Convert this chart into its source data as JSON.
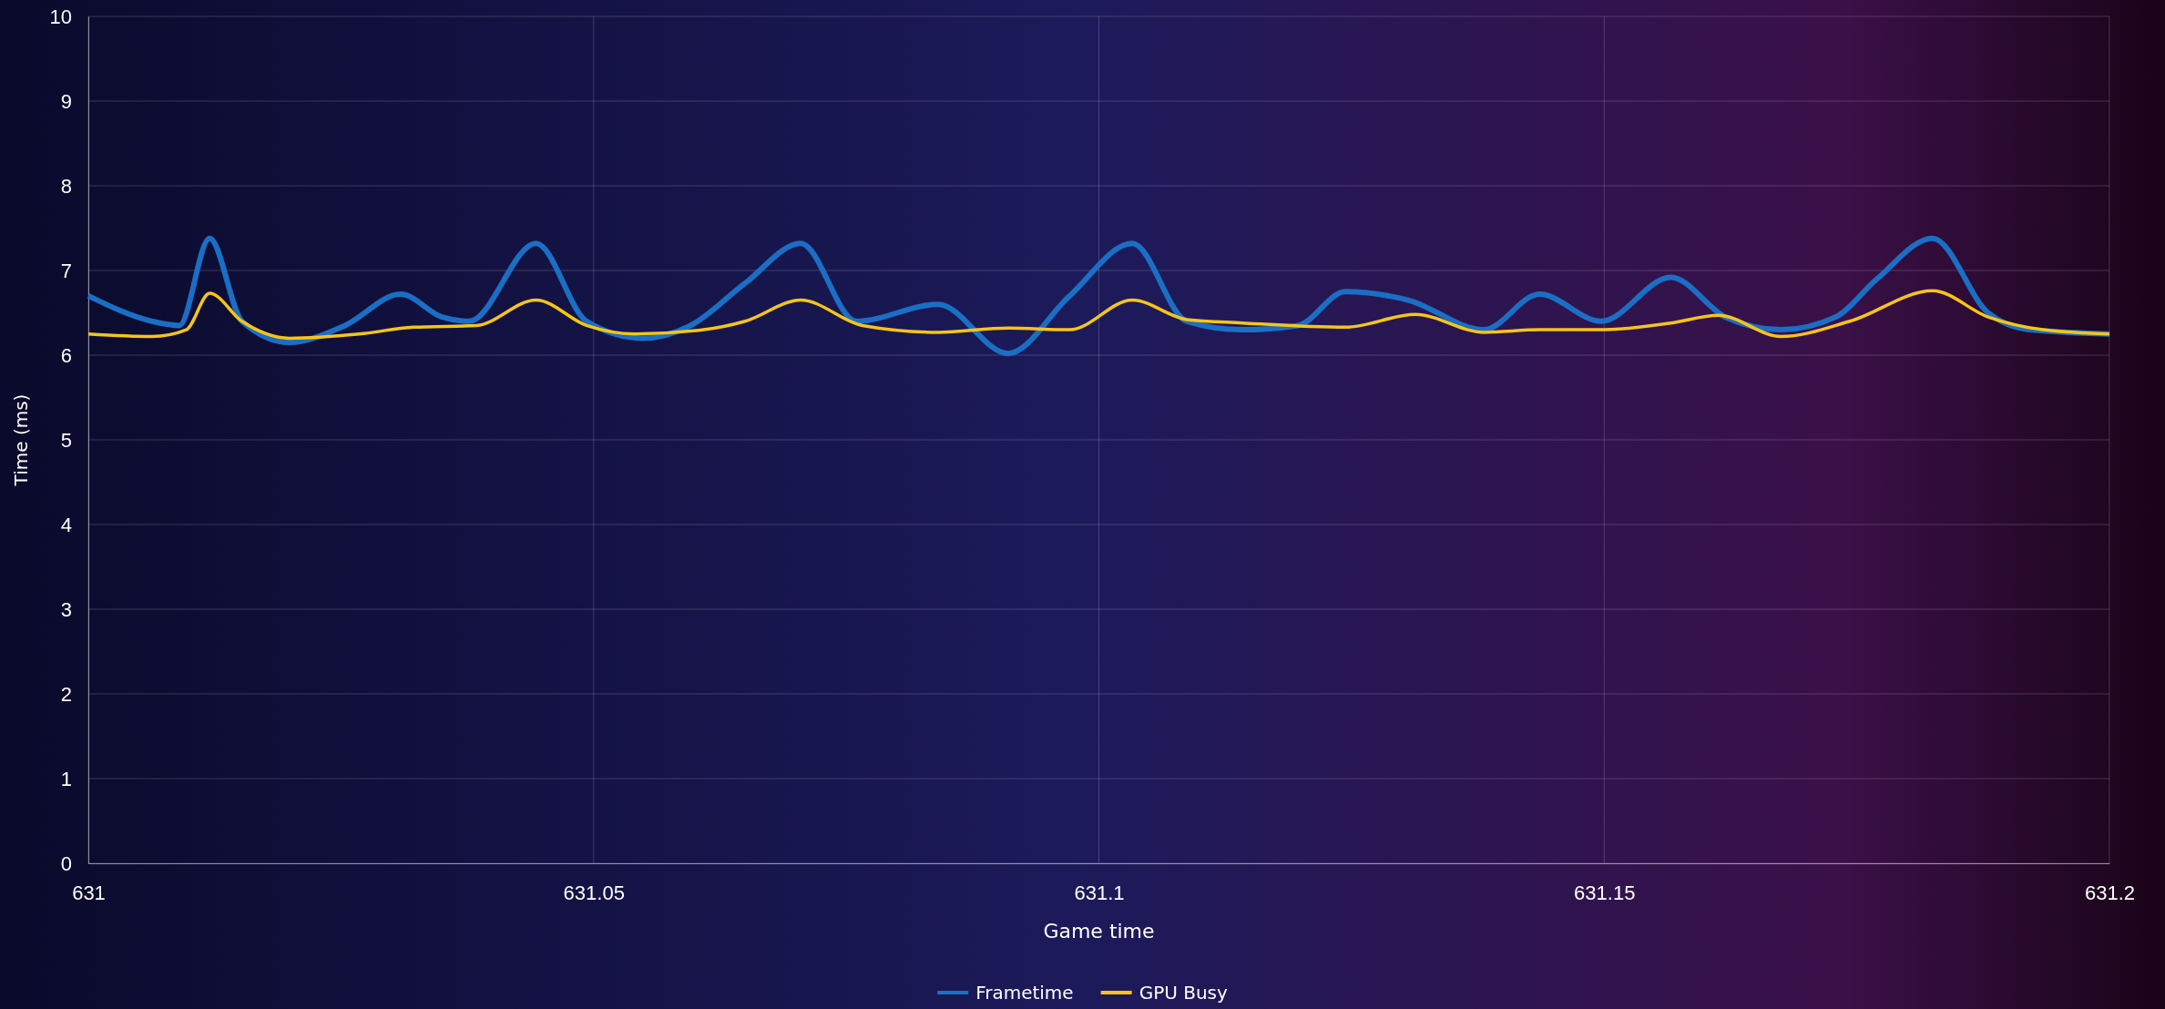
{
  "chart_data": {
    "type": "line",
    "xlabel": "Game time",
    "ylabel": "Time (ms)",
    "xlim": [
      631,
      631.2
    ],
    "xticks": [
      631,
      631.05,
      631.1,
      631.15,
      631.2
    ],
    "ylim": [
      0,
      10
    ],
    "yticks": [
      0,
      1,
      2,
      3,
      4,
      5,
      6,
      7,
      8,
      9,
      10
    ],
    "grid": true,
    "legend": "bottom",
    "line_style": "solid",
    "marker": "none",
    "series": [
      {
        "name": "Frametime",
        "color": "#1a6fc4",
        "x": [
          631,
          631.0063,
          631.009,
          631.012,
          631.0152,
          631.0199,
          631.0254,
          631.0309,
          631.035,
          631.0377,
          631.0443,
          631.0493,
          631.0548,
          631.0596,
          631.065,
          631.0705,
          631.076,
          631.0841,
          631.091,
          631.0971,
          631.1033,
          631.1087,
          631.1142,
          631.1197,
          631.1244,
          631.1306,
          631.1381,
          631.1436,
          631.1497,
          631.1566,
          631.162,
          631.1675,
          631.1729,
          631.177,
          631.1825,
          631.188,
          631.1921,
          631.2
        ],
        "values": [
          6.7,
          6.4,
          6.35,
          7.38,
          6.4,
          6.15,
          6.35,
          6.72,
          6.45,
          6.4,
          7.32,
          6.4,
          6.2,
          6.35,
          6.85,
          7.32,
          6.4,
          6.6,
          6.02,
          6.7,
          7.32,
          6.4,
          6.3,
          6.35,
          6.75,
          6.65,
          6.3,
          6.72,
          6.4,
          6.92,
          6.45,
          6.3,
          6.45,
          6.9,
          7.38,
          6.5,
          6.3,
          6.25
        ]
      },
      {
        "name": "GPU Busy",
        "color": "#f5c518",
        "x": [
          631,
          631.0063,
          631.0097,
          631.012,
          631.0152,
          631.0199,
          631.0268,
          631.0322,
          631.0384,
          631.0443,
          631.0493,
          631.0541,
          631.0609,
          631.065,
          631.0705,
          631.0766,
          631.0841,
          631.091,
          631.0971,
          631.1033,
          631.1087,
          631.1142,
          631.1244,
          631.1313,
          631.1381,
          631.1436,
          631.1497,
          631.1566,
          631.1613,
          631.1675,
          631.1743,
          631.1825,
          631.188,
          631.1934,
          631.2
        ],
        "values": [
          6.25,
          6.22,
          6.3,
          6.73,
          6.4,
          6.2,
          6.25,
          6.33,
          6.35,
          6.65,
          6.35,
          6.25,
          6.3,
          6.4,
          6.65,
          6.35,
          6.27,
          6.32,
          6.3,
          6.65,
          6.42,
          6.38,
          6.33,
          6.48,
          6.27,
          6.3,
          6.3,
          6.38,
          6.47,
          6.22,
          6.4,
          6.76,
          6.45,
          6.3,
          6.25
        ]
      }
    ]
  }
}
